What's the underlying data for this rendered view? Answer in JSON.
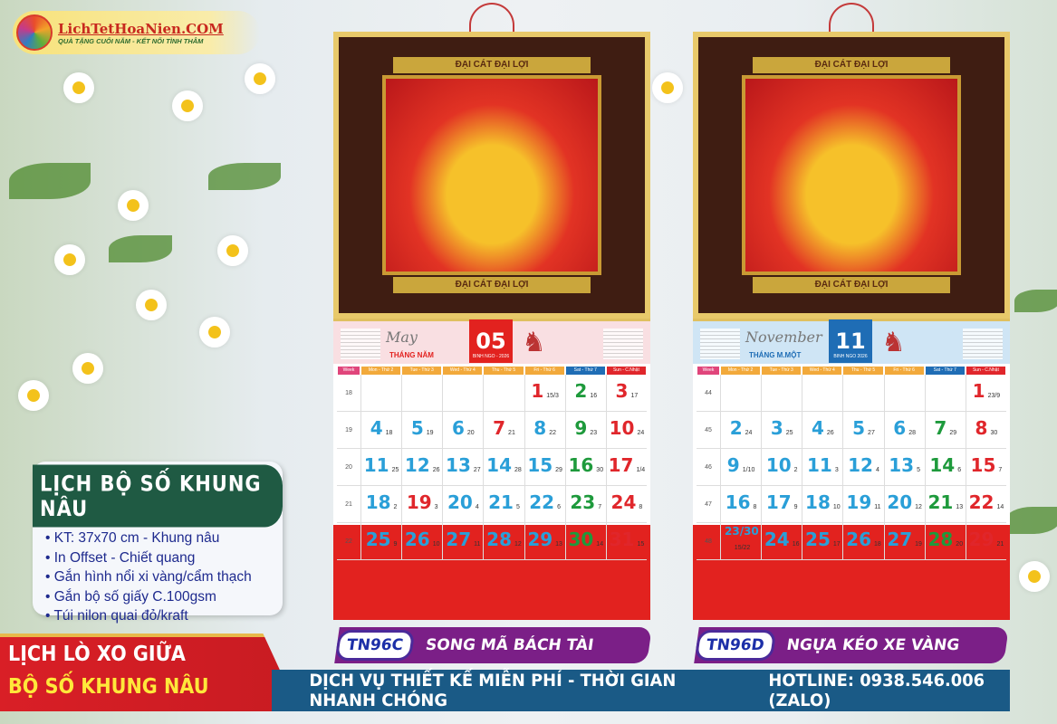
{
  "logo": {
    "title": "LichTetHoaNien.COM",
    "slogan": "QUÀ TẶNG CUỐI NĂM - KẾT NỐI TÌNH THÂM"
  },
  "info": {
    "title": "LỊCH BỘ SỐ KHUNG NÂU",
    "items": [
      "KT: 37x70 cm - Khung nâu",
      "In Offset - Chiết quang",
      "Gắn hình nổi xi vàng/cẩm thạch",
      "Gắn bộ số giấy C.100gsm",
      "Túi nilon quai đỏ/kraft"
    ]
  },
  "ribbon": {
    "line1": "LỊCH LÒ XO GIỮA",
    "line2": "BỘ SỐ KHUNG NÂU"
  },
  "footer": {
    "service": "DỊCH VỤ THIẾT KẾ MIỄN PHÍ - THỜI GIAN NHANH CHÓNG",
    "hotline": "HOTLINE: 0938.546.006 (ZALO)"
  },
  "colors": {
    "weekday": "#2a9fd8",
    "saturday": "#1e9a3c",
    "sunday": "#e0262b"
  },
  "day_headers": [
    "Week",
    "Mon - Thứ 2",
    "Tue - Thứ 3",
    "Wed - Thứ 4",
    "Thu - Thứ 5",
    "Fri - Thứ 6",
    "Sat - Thứ 7",
    "Sun - C.Nhật"
  ],
  "calendars": [
    {
      "code": "TN96C",
      "name": "SONG MÃ BÁCH TÀI",
      "frame_text": "ĐẠI CÁT ĐẠI LỢI",
      "script": "May",
      "month_name": "THÁNG NĂM",
      "month_num": "05",
      "year": "BINH NGO - 2026",
      "theme": "#f9dfe2",
      "box": "#e2221f",
      "weeks": [
        {
          "w": "18",
          "days": [
            null,
            null,
            null,
            null,
            [
              "1",
              "15/3",
              "h"
            ],
            [
              "2",
              "16"
            ],
            [
              "3",
              "17"
            ]
          ]
        },
        {
          "w": "19",
          "days": [
            [
              "4",
              "18"
            ],
            [
              "5",
              "19"
            ],
            [
              "6",
              "20"
            ],
            [
              "7",
              "21",
              "h"
            ],
            [
              "8",
              "22"
            ],
            [
              "9",
              "23"
            ],
            [
              "10",
              "24"
            ]
          ]
        },
        {
          "w": "20",
          "days": [
            [
              "11",
              "25"
            ],
            [
              "12",
              "26"
            ],
            [
              "13",
              "27"
            ],
            [
              "14",
              "28"
            ],
            [
              "15",
              "29"
            ],
            [
              "16",
              "30"
            ],
            [
              "17",
              "1/4"
            ]
          ]
        },
        {
          "w": "21",
          "days": [
            [
              "18",
              "2"
            ],
            [
              "19",
              "3",
              "h"
            ],
            [
              "20",
              "4"
            ],
            [
              "21",
              "5"
            ],
            [
              "22",
              "6"
            ],
            [
              "23",
              "7"
            ],
            [
              "24",
              "8"
            ]
          ]
        },
        {
          "w": "22",
          "days": [
            [
              "25",
              "9"
            ],
            [
              "26",
              "10"
            ],
            [
              "27",
              "11"
            ],
            [
              "28",
              "12"
            ],
            [
              "29",
              "13"
            ],
            [
              "30",
              "14"
            ],
            [
              "31",
              "15"
            ]
          ]
        }
      ]
    },
    {
      "code": "TN96D",
      "name": "NGỰA KÉO XE VÀNG",
      "frame_text": "ĐẠI CÁT ĐẠI LỢI",
      "script": "November",
      "month_name": "THÁNG M.MỘT",
      "month_num": "11",
      "year": "BINH NGO 2026",
      "theme": "#cfe5f5",
      "box": "#1f6db5",
      "weeks": [
        {
          "w": "44",
          "days": [
            null,
            null,
            null,
            null,
            null,
            null,
            [
              "1",
              "23/9"
            ]
          ]
        },
        {
          "w": "45",
          "days": [
            [
              "2",
              "24"
            ],
            [
              "3",
              "25"
            ],
            [
              "4",
              "26"
            ],
            [
              "5",
              "27"
            ],
            [
              "6",
              "28"
            ],
            [
              "7",
              "29"
            ],
            [
              "8",
              "30"
            ]
          ]
        },
        {
          "w": "46",
          "days": [
            [
              "9",
              "1/10"
            ],
            [
              "10",
              "2"
            ],
            [
              "11",
              "3"
            ],
            [
              "12",
              "4"
            ],
            [
              "13",
              "5"
            ],
            [
              "14",
              "6"
            ],
            [
              "15",
              "7"
            ]
          ]
        },
        {
          "w": "47",
          "days": [
            [
              "16",
              "8"
            ],
            [
              "17",
              "9"
            ],
            [
              "18",
              "10"
            ],
            [
              "19",
              "11"
            ],
            [
              "20",
              "12"
            ],
            [
              "21",
              "13"
            ],
            [
              "22",
              "14"
            ]
          ]
        },
        {
          "w": "48",
          "days": [
            [
              "23/30",
              "15/22"
            ],
            [
              "24",
              "16"
            ],
            [
              "25",
              "17"
            ],
            [
              "26",
              "18"
            ],
            [
              "27",
              "19"
            ],
            [
              "28",
              "20"
            ],
            [
              "29",
              "21"
            ]
          ]
        }
      ]
    }
  ]
}
